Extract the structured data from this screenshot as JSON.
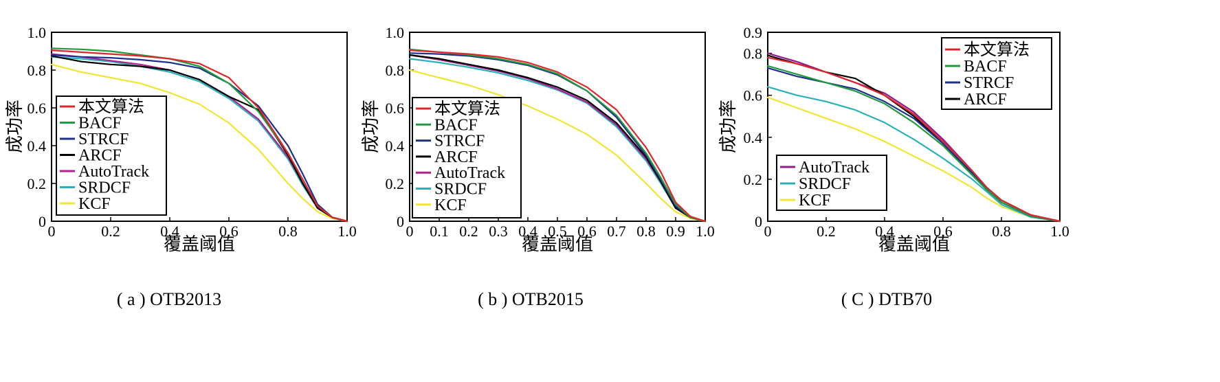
{
  "chart_data": [
    {
      "type": "line",
      "caption": "( a ) OTB2013",
      "xlabel": "覆盖阈值",
      "ylabel": "成功率",
      "xlim": [
        0,
        1
      ],
      "ylim": [
        0,
        1
      ],
      "xticks": [
        "0",
        "0.2",
        "0.4",
        "0.6",
        "0.8",
        "1.0"
      ],
      "xtick_values": [
        0,
        0.2,
        0.4,
        0.6,
        0.8,
        1.0
      ],
      "yticks": [
        "0",
        "0.2",
        "0.4",
        "0.6",
        "0.8",
        "1.0"
      ],
      "ytick_values": [
        0,
        0.2,
        0.4,
        0.6,
        0.8,
        1.0
      ],
      "grid": false,
      "legend_position": "bottom-left",
      "x": [
        0,
        0.1,
        0.2,
        0.3,
        0.4,
        0.5,
        0.6,
        0.7,
        0.8,
        0.85,
        0.9,
        0.95,
        1.0
      ],
      "series": [
        {
          "name": "本文算法",
          "color": "#e0262d",
          "values": [
            0.905,
            0.895,
            0.885,
            0.875,
            0.86,
            0.835,
            0.76,
            0.6,
            0.36,
            0.22,
            0.08,
            0.02,
            0
          ]
        },
        {
          "name": "BACF",
          "color": "#1f9a3c",
          "values": [
            0.915,
            0.91,
            0.9,
            0.88,
            0.86,
            0.82,
            0.73,
            0.58,
            0.36,
            0.22,
            0.08,
            0.02,
            0
          ]
        },
        {
          "name": "STRCF",
          "color": "#1e2f8f",
          "values": [
            0.88,
            0.87,
            0.865,
            0.855,
            0.84,
            0.81,
            0.73,
            0.61,
            0.4,
            0.25,
            0.09,
            0.02,
            0
          ]
        },
        {
          "name": "ARCF",
          "color": "#000000",
          "values": [
            0.875,
            0.845,
            0.83,
            0.82,
            0.8,
            0.75,
            0.66,
            0.59,
            0.35,
            0.2,
            0.07,
            0.02,
            0
          ]
        },
        {
          "name": "AutoTrack",
          "color": "#b0208f",
          "values": [
            0.885,
            0.87,
            0.85,
            0.83,
            0.8,
            0.75,
            0.66,
            0.54,
            0.34,
            0.2,
            0.07,
            0.02,
            0
          ]
        },
        {
          "name": "SRDCF",
          "color": "#2ab0b8",
          "values": [
            0.87,
            0.86,
            0.845,
            0.82,
            0.79,
            0.74,
            0.65,
            0.53,
            0.33,
            0.19,
            0.07,
            0.02,
            0
          ]
        },
        {
          "name": "KCF",
          "color": "#f2e531",
          "values": [
            0.83,
            0.79,
            0.76,
            0.73,
            0.68,
            0.62,
            0.52,
            0.38,
            0.2,
            0.12,
            0.05,
            0.015,
            0
          ]
        }
      ]
    },
    {
      "type": "line",
      "caption": "( b ) OTB2015",
      "xlabel": "覆盖阈值",
      "ylabel": "成功率",
      "xlim": [
        0,
        1
      ],
      "ylim": [
        0,
        1
      ],
      "xticks": [
        "0",
        "0.1",
        "0.2",
        "0.3",
        "0.4",
        "0.5",
        "0.6",
        "0.7",
        "0.8",
        "0.9",
        "1.0"
      ],
      "xtick_values": [
        0,
        0.1,
        0.2,
        0.3,
        0.4,
        0.5,
        0.6,
        0.7,
        0.8,
        0.9,
        1.0
      ],
      "yticks": [
        "0",
        "0.2",
        "0.4",
        "0.6",
        "0.8",
        "1.0"
      ],
      "ytick_values": [
        0,
        0.2,
        0.4,
        0.6,
        0.8,
        1.0
      ],
      "grid": false,
      "legend_position": "bottom-left",
      "x": [
        0,
        0.1,
        0.2,
        0.3,
        0.4,
        0.5,
        0.6,
        0.7,
        0.8,
        0.85,
        0.9,
        0.95,
        1.0
      ],
      "series": [
        {
          "name": "本文算法",
          "color": "#e0262d",
          "values": [
            0.905,
            0.895,
            0.885,
            0.87,
            0.84,
            0.79,
            0.71,
            0.59,
            0.39,
            0.26,
            0.1,
            0.025,
            0
          ]
        },
        {
          "name": "BACF",
          "color": "#1f9a3c",
          "values": [
            0.91,
            0.895,
            0.88,
            0.86,
            0.83,
            0.78,
            0.69,
            0.56,
            0.36,
            0.23,
            0.09,
            0.02,
            0
          ]
        },
        {
          "name": "STRCF",
          "color": "#1e2f8f",
          "values": [
            0.89,
            0.885,
            0.875,
            0.855,
            0.825,
            0.775,
            0.69,
            0.55,
            0.35,
            0.22,
            0.08,
            0.02,
            0
          ]
        },
        {
          "name": "ARCF",
          "color": "#000000",
          "values": [
            0.88,
            0.86,
            0.83,
            0.8,
            0.76,
            0.71,
            0.64,
            0.52,
            0.34,
            0.21,
            0.07,
            0.02,
            0
          ]
        },
        {
          "name": "AutoTrack",
          "color": "#b0208f",
          "values": [
            0.88,
            0.855,
            0.825,
            0.795,
            0.755,
            0.7,
            0.63,
            0.51,
            0.33,
            0.21,
            0.07,
            0.02,
            0
          ]
        },
        {
          "name": "SRDCF",
          "color": "#2ab0b8",
          "values": [
            0.86,
            0.84,
            0.815,
            0.785,
            0.745,
            0.695,
            0.625,
            0.5,
            0.32,
            0.2,
            0.07,
            0.02,
            0
          ]
        },
        {
          "name": "KCF",
          "color": "#f2e531",
          "values": [
            0.8,
            0.76,
            0.72,
            0.67,
            0.61,
            0.54,
            0.46,
            0.35,
            0.2,
            0.12,
            0.05,
            0.015,
            0
          ]
        }
      ]
    },
    {
      "type": "line",
      "caption": "( C ) DTB70",
      "xlabel": "覆盖阈值",
      "ylabel": "成功率",
      "xlim": [
        0,
        1
      ],
      "ylim": [
        0,
        0.9
      ],
      "xticks": [
        "0",
        "0.2",
        "0.4",
        "0.6",
        "0.8",
        "1.0"
      ],
      "xtick_values": [
        0,
        0.2,
        0.4,
        0.6,
        0.8,
        1.0
      ],
      "yticks": [
        "0",
        "0.2",
        "0.4",
        "0.6",
        "0.8",
        "0.9"
      ],
      "ytick_values": [
        0,
        0.2,
        0.4,
        0.6,
        0.8,
        0.9
      ],
      "grid": false,
      "legend_position": "top-right and bottom-left",
      "legend_groups": [
        [
          "本文算法",
          "BACF",
          "STRCF",
          "ARCF"
        ],
        [
          "AutoTrack",
          "SRDCF",
          "KCF"
        ]
      ],
      "x": [
        0,
        0.1,
        0.2,
        0.3,
        0.4,
        0.5,
        0.6,
        0.7,
        0.75,
        0.8,
        0.9,
        1.0
      ],
      "series": [
        {
          "name": "本文算法",
          "color": "#e0262d",
          "values": [
            0.78,
            0.75,
            0.71,
            0.66,
            0.6,
            0.51,
            0.38,
            0.24,
            0.16,
            0.1,
            0.03,
            0
          ]
        },
        {
          "name": "BACF",
          "color": "#1f9a3c",
          "values": [
            0.74,
            0.7,
            0.66,
            0.62,
            0.56,
            0.47,
            0.36,
            0.22,
            0.15,
            0.09,
            0.025,
            0
          ]
        },
        {
          "name": "STRCF",
          "color": "#1e2f8f",
          "values": [
            0.73,
            0.69,
            0.66,
            0.63,
            0.57,
            0.49,
            0.37,
            0.23,
            0.16,
            0.1,
            0.03,
            0
          ]
        },
        {
          "name": "ARCF",
          "color": "#000000",
          "values": [
            0.79,
            0.75,
            0.71,
            0.68,
            0.6,
            0.5,
            0.37,
            0.22,
            0.15,
            0.09,
            0.025,
            0
          ]
        },
        {
          "name": "AutoTrack",
          "color": "#8e1a8c",
          "values": [
            0.8,
            0.76,
            0.71,
            0.66,
            0.61,
            0.52,
            0.39,
            0.24,
            0.16,
            0.1,
            0.03,
            0
          ]
        },
        {
          "name": "SRDCF",
          "color": "#2ab0b8",
          "values": [
            0.64,
            0.6,
            0.57,
            0.53,
            0.47,
            0.39,
            0.3,
            0.2,
            0.14,
            0.08,
            0.02,
            0
          ]
        },
        {
          "name": "KCF",
          "color": "#f2e531",
          "values": [
            0.59,
            0.54,
            0.49,
            0.44,
            0.38,
            0.31,
            0.24,
            0.16,
            0.11,
            0.07,
            0.02,
            0
          ]
        }
      ]
    }
  ]
}
